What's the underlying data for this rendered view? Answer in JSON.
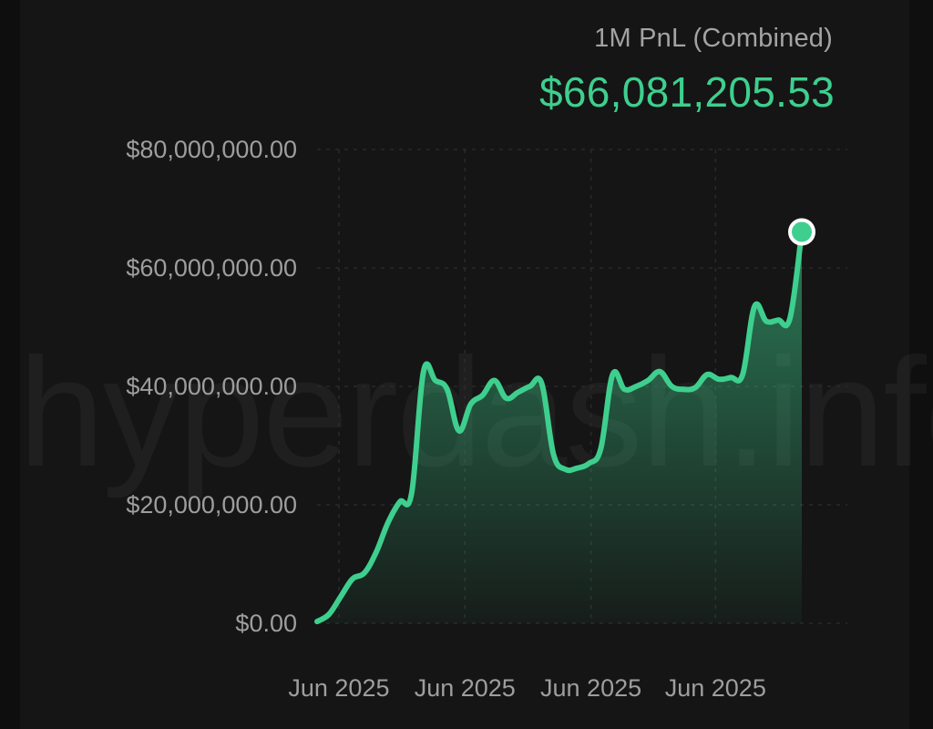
{
  "header": {
    "label": "1M PnL (Combined)",
    "value": "$66,081,205.53"
  },
  "watermark": "hyperdash.info",
  "colors": {
    "background": "#151515",
    "line": "#3ecf8e",
    "axis_text": "#9e9e9e",
    "grid": "#2a2a2a"
  },
  "chart_data": {
    "type": "area",
    "title": "1M PnL (Combined)",
    "xlabel": "",
    "ylabel": "",
    "ylim": [
      0,
      80000000
    ],
    "grid": true,
    "y_ticks": [
      0,
      20000000,
      40000000,
      60000000,
      80000000
    ],
    "y_tick_labels": [
      "$0.00",
      "$20,000,000.00",
      "$40,000,000.00",
      "$60,000,000.00",
      "$80,000,000.00"
    ],
    "x_tick_labels": [
      "Jun 2025",
      "Jun 2025",
      "Jun 2025",
      "Jun 2025"
    ],
    "x_tick_positions": [
      0.045,
      0.305,
      0.565,
      0.822
    ],
    "series": [
      {
        "values": [
          300000,
          1500000,
          4500000,
          7500000,
          8500000,
          12000000,
          17000000,
          20500000,
          22000000,
          42500000,
          41000000,
          39500000,
          32500000,
          37000000,
          38500000,
          41000000,
          38000000,
          39000000,
          40000000,
          40500000,
          28500000,
          26000000,
          26200000,
          27000000,
          29500000,
          42000000,
          39500000,
          40000000,
          41000000,
          42500000,
          40000000,
          39500000,
          39800000,
          42000000,
          41200000,
          41500000,
          42000000,
          53500000,
          51000000,
          51200000,
          51500000,
          66081205.53
        ]
      }
    ],
    "last_value": 66081205.53
  }
}
